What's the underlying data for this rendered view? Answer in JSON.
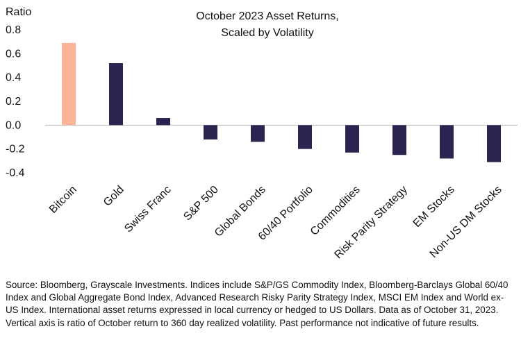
{
  "chart_data": {
    "type": "bar",
    "title_lines": [
      "October 2023 Asset Returns,",
      "Scaled by Volatility"
    ],
    "xlabel": "",
    "ylabel": "Ratio",
    "ylim": [
      -0.4,
      0.8
    ],
    "yticks": [
      "0.8",
      "0.6",
      "0.4",
      "0.2",
      "0.0",
      "-0.2",
      "-0.4"
    ],
    "ytick_values": [
      0.8,
      0.6,
      0.4,
      0.2,
      0.0,
      -0.2,
      -0.4
    ],
    "categories": [
      "Bitcoin",
      "Gold",
      "Swiss Franc",
      "S&P 500",
      "Global Bonds",
      "60/40 Portfolio",
      "Commodities",
      "Risk Parity Strategy",
      "EM Stocks",
      "Non-US DM Stocks"
    ],
    "values": [
      0.69,
      0.52,
      0.06,
      -0.12,
      -0.14,
      -0.2,
      -0.23,
      -0.25,
      -0.28,
      -0.31
    ],
    "colors": [
      "#fbb39a",
      "#2b2450",
      "#2b2450",
      "#2b2450",
      "#2b2450",
      "#2b2450",
      "#2b2450",
      "#2b2450",
      "#2b2450",
      "#2b2450"
    ],
    "grid": false,
    "legend": "none"
  },
  "footnote": "Source: Bloomberg, Grayscale Investments. Indices include S&P/GS Commodity Index, Bloomberg-Barclays Global 60/40 Index and Global Aggregate Bond Index, Advanced Research Risky Parity Strategy Index, MSCI EM Index and World ex-US Index. International asset returns expressed in local currency or hedged to US Dollars. Data as of October 31, 2023. Vertical axis is ratio of October return to 360 day realized volatility. Past performance not indicative of future results."
}
